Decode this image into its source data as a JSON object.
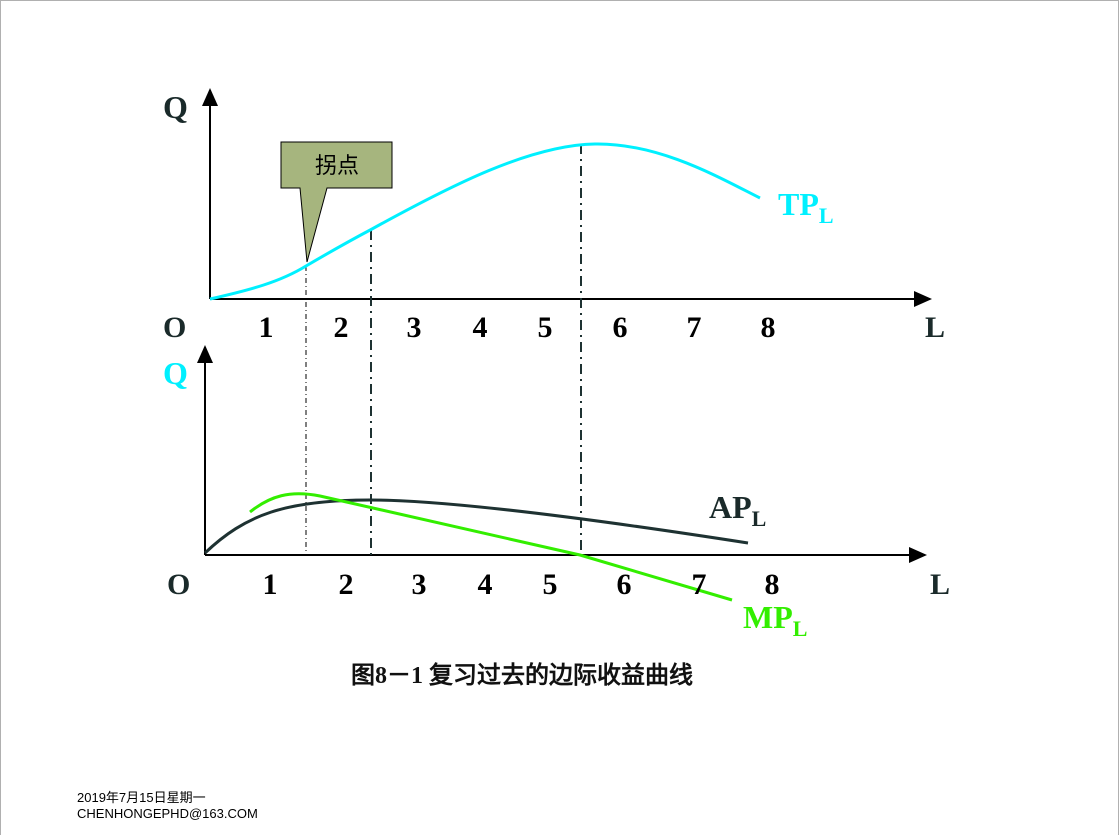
{
  "top_chart": {
    "y_label": "Q",
    "origin_label": "O",
    "x_label": "L",
    "ticks": [
      "1",
      "2",
      "3",
      "4",
      "5",
      "6",
      "7",
      "8"
    ],
    "curve_label": "TP",
    "curve_sub": "L",
    "callout": "拐点"
  },
  "bottom_chart": {
    "y_label": "Q",
    "origin_label": "O",
    "x_label": "L",
    "ticks": [
      "1",
      "2",
      "3",
      "4",
      "5",
      "6",
      "7",
      "8"
    ],
    "ap_label": "AP",
    "ap_sub": "L",
    "mp_label": "MP",
    "mp_sub": "L"
  },
  "caption": "图8－1  复习过去的边际收益曲线",
  "footer": {
    "date": "2019年7月15日星期一",
    "email": "CHENHONGEPHD@163.COM"
  },
  "colors": {
    "tp": "#00f0ff",
    "ap": "#1e3232",
    "mp": "#33ee00",
    "callout_fill": "#a6b57e",
    "text_dark": "#1a2a2a"
  }
}
